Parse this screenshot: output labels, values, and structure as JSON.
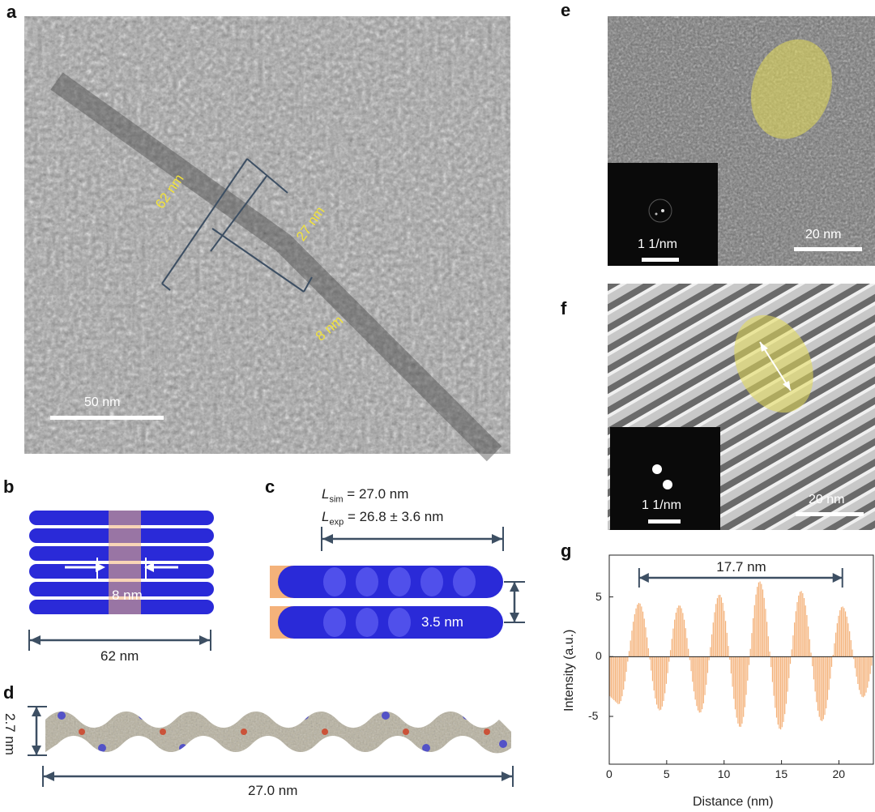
{
  "panels": {
    "a": {
      "letter": "a",
      "labels": {
        "length": "62 nm",
        "segment": "27 nm",
        "width": "8 nm"
      },
      "scale_bar": "50 nm"
    },
    "b": {
      "letter": "b",
      "width_label": "8 nm",
      "length_label": "62 nm"
    },
    "c": {
      "letter": "c",
      "sim_label": "L",
      "sim_sub": "sim",
      "sim_value": " = 27.0 nm",
      "exp_label": "L",
      "exp_sub": "exp",
      "exp_value": " = 26.8 ± 3.6 nm",
      "spacing_label": "3.5 nm"
    },
    "d": {
      "letter": "d",
      "height_label": "2.7 nm",
      "length_label": "27.0 nm"
    },
    "e": {
      "letter": "e",
      "inset_scale": "1 1/nm",
      "scale_bar": "20 nm"
    },
    "f": {
      "letter": "f",
      "inset_scale": "1 1/nm",
      "scale_bar": "20 nm"
    },
    "g": {
      "letter": "g"
    }
  },
  "colors": {
    "highlight": "#e6dd55",
    "fill": "#f4b27a",
    "arrow": "#3d4f63",
    "blue": "#2a2ad8"
  },
  "chart_data": {
    "type": "area",
    "title": "",
    "xlabel": "Distance (nm)",
    "ylabel": "Intensity (a.u.)",
    "xlim": [
      0,
      23
    ],
    "ylim": [
      -9,
      8.5
    ],
    "xticks": [
      0,
      5,
      10,
      15,
      20
    ],
    "yticks": [
      -5,
      0,
      5
    ],
    "annotation": "17.7 nm",
    "annotation_span": [
      2.6,
      20.3
    ],
    "peaks": [
      {
        "x": 2.6,
        "y": 4.5
      },
      {
        "x": 6.1,
        "y": 4.3
      },
      {
        "x": 9.6,
        "y": 5.2
      },
      {
        "x": 13.1,
        "y": 6.3
      },
      {
        "x": 16.7,
        "y": 5.5
      },
      {
        "x": 20.3,
        "y": 4.2
      }
    ],
    "troughs": [
      {
        "x": 0.8,
        "y": -4.0
      },
      {
        "x": 4.4,
        "y": -4.5
      },
      {
        "x": 7.9,
        "y": -4.7
      },
      {
        "x": 11.4,
        "y": -5.9
      },
      {
        "x": 14.9,
        "y": -6.1
      },
      {
        "x": 18.5,
        "y": -5.4
      },
      {
        "x": 22.1,
        "y": -3.4
      }
    ]
  }
}
